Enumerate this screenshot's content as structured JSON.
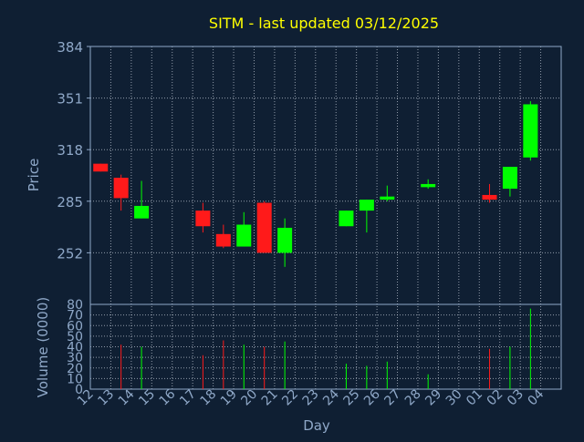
{
  "chart_data": {
    "type": "candlestick",
    "title": "SITM - last updated 03/12/2025",
    "colors": {
      "background": "#0f1f33",
      "title": "#ffff00",
      "axis_text": "#8fa8c8",
      "plot_border": "#8fa8c8",
      "grid": "#c8d0dc",
      "up": "#00ff00",
      "down": "#ff1a1a"
    },
    "xlabel": "Day",
    "x_ticks": [
      "12",
      "13",
      "14",
      "15",
      "16",
      "17",
      "18",
      "19",
      "20",
      "21",
      "22",
      "23",
      "24",
      "25",
      "26",
      "27",
      "28",
      "29",
      "30",
      "01",
      "02",
      "03",
      "04"
    ],
    "price_panel": {
      "ylabel": "Price",
      "ylim": [
        219,
        384
      ],
      "y_ticks": [
        384,
        351,
        318,
        285,
        252
      ],
      "grid": true
    },
    "volume_panel": {
      "ylabel": "Volume (0000)",
      "ylim": [
        0,
        80
      ],
      "y_ticks": [
        80,
        70,
        60,
        50,
        40,
        30,
        20,
        10,
        0
      ],
      "grid": true
    },
    "candles": [
      {
        "day": "12",
        "open": 309,
        "close": 304,
        "high": 309,
        "low": 304,
        "volume": 0
      },
      {
        "day": "13",
        "open": 300,
        "close": 287,
        "high": 302,
        "low": 279,
        "volume": 42
      },
      {
        "day": "14",
        "open": 274,
        "close": 282,
        "high": 298,
        "low": 274,
        "volume": 40
      },
      {
        "day": "17",
        "open": 279,
        "close": 269,
        "high": 284,
        "low": 265,
        "volume": 32
      },
      {
        "day": "18",
        "open": 264,
        "close": 256,
        "high": 270,
        "low": 255,
        "volume": 46
      },
      {
        "day": "19",
        "open": 256,
        "close": 270,
        "high": 278,
        "low": 256,
        "volume": 42
      },
      {
        "day": "20",
        "open": 284,
        "close": 252,
        "high": 285,
        "low": 252,
        "volume": 40
      },
      {
        "day": "21",
        "open": 252,
        "close": 268,
        "high": 274,
        "low": 243,
        "volume": 45
      },
      {
        "day": "24",
        "open": 269,
        "close": 279,
        "high": 279,
        "low": 269,
        "volume": 24
      },
      {
        "day": "25",
        "open": 279,
        "close": 286,
        "high": 286,
        "low": 265,
        "volume": 22
      },
      {
        "day": "26",
        "open": 286,
        "close": 288,
        "high": 295,
        "low": 285,
        "volume": 26
      },
      {
        "day": "28",
        "open": 294,
        "close": 296,
        "high": 299,
        "low": 293,
        "volume": 14
      },
      {
        "day": "01",
        "open": 289,
        "close": 286,
        "high": 296,
        "low": 284,
        "volume": 38
      },
      {
        "day": "02",
        "open": 293,
        "close": 307,
        "high": 307,
        "low": 288,
        "volume": 40
      },
      {
        "day": "03",
        "open": 313,
        "close": 347,
        "high": 349,
        "low": 311,
        "volume": 76
      }
    ]
  }
}
